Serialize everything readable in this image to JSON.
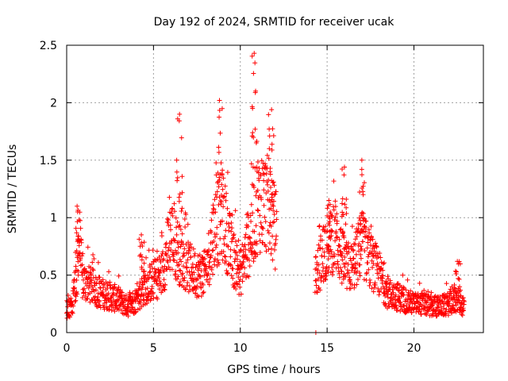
{
  "chart_data": {
    "type": "scatter",
    "title": "Day 192 of 2024, SRMTID for receiver ucak",
    "xlabel": "GPS time / hours",
    "ylabel": "SRMTID / TECUs",
    "xlim": [
      0,
      24
    ],
    "ylim": [
      0,
      2.5
    ],
    "xticks": [
      0,
      5,
      10,
      15,
      20
    ],
    "yticks": [
      0,
      0.5,
      1,
      1.5,
      2,
      2.5
    ],
    "xtick_labels": [
      "0",
      "5",
      "10",
      "15",
      "20"
    ],
    "ytick_labels": [
      "0",
      "0.5",
      "1",
      "1.5",
      "2",
      "2.5"
    ],
    "grid": true,
    "marker": "+",
    "color": "#ff0000",
    "x_range_data": [
      0.0,
      22.9
    ],
    "gap_hours": [
      12.1,
      14.3
    ],
    "isolated_point": {
      "x": 14.35,
      "y": 0.0
    },
    "envelope": [
      {
        "x": 0.0,
        "y": 0.18
      },
      {
        "x": 0.3,
        "y": 0.2
      },
      {
        "x": 0.6,
        "y": 0.45
      },
      {
        "x": 0.7,
        "y": 0.8
      },
      {
        "x": 0.9,
        "y": 0.4
      },
      {
        "x": 1.5,
        "y": 0.35
      },
      {
        "x": 2.0,
        "y": 0.3
      },
      {
        "x": 2.5,
        "y": 0.28
      },
      {
        "x": 3.0,
        "y": 0.25
      },
      {
        "x": 3.5,
        "y": 0.2
      },
      {
        "x": 4.0,
        "y": 0.25
      },
      {
        "x": 4.5,
        "y": 0.35
      },
      {
        "x": 5.0,
        "y": 0.4
      },
      {
        "x": 5.5,
        "y": 0.45
      },
      {
        "x": 6.0,
        "y": 0.75
      },
      {
        "x": 6.5,
        "y": 0.6
      },
      {
        "x": 7.0,
        "y": 0.5
      },
      {
        "x": 7.5,
        "y": 0.45
      },
      {
        "x": 8.0,
        "y": 0.45
      },
      {
        "x": 8.5,
        "y": 0.8
      },
      {
        "x": 9.0,
        "y": 0.9
      },
      {
        "x": 9.5,
        "y": 0.6
      },
      {
        "x": 10.0,
        "y": 0.45
      },
      {
        "x": 10.5,
        "y": 0.7
      },
      {
        "x": 11.0,
        "y": 1.0
      },
      {
        "x": 11.5,
        "y": 1.0
      },
      {
        "x": 12.0,
        "y": 0.8
      },
      {
        "x": 14.4,
        "y": 0.45
      },
      {
        "x": 15.0,
        "y": 0.7
      },
      {
        "x": 15.5,
        "y": 0.75
      },
      {
        "x": 16.0,
        "y": 0.5
      },
      {
        "x": 16.5,
        "y": 0.5
      },
      {
        "x": 17.0,
        "y": 0.7
      },
      {
        "x": 17.5,
        "y": 0.55
      },
      {
        "x": 18.0,
        "y": 0.45
      },
      {
        "x": 18.5,
        "y": 0.3
      },
      {
        "x": 19.0,
        "y": 0.28
      },
      {
        "x": 19.5,
        "y": 0.25
      },
      {
        "x": 20.0,
        "y": 0.22
      },
      {
        "x": 20.5,
        "y": 0.22
      },
      {
        "x": 21.0,
        "y": 0.2
      },
      {
        "x": 21.5,
        "y": 0.2
      },
      {
        "x": 22.0,
        "y": 0.22
      },
      {
        "x": 22.5,
        "y": 0.25
      },
      {
        "x": 22.9,
        "y": 0.2
      }
    ],
    "peaks": [
      {
        "x": 0.6,
        "y": 1.1
      },
      {
        "x": 4.3,
        "y": 0.85
      },
      {
        "x": 6.5,
        "y": 1.9
      },
      {
        "x": 8.8,
        "y": 2.02
      },
      {
        "x": 10.8,
        "y": 2.43
      },
      {
        "x": 11.8,
        "y": 1.94
      },
      {
        "x": 15.1,
        "y": 1.15
      },
      {
        "x": 16.0,
        "y": 1.44
      },
      {
        "x": 17.0,
        "y": 1.5
      },
      {
        "x": 22.5,
        "y": 0.62
      }
    ]
  }
}
